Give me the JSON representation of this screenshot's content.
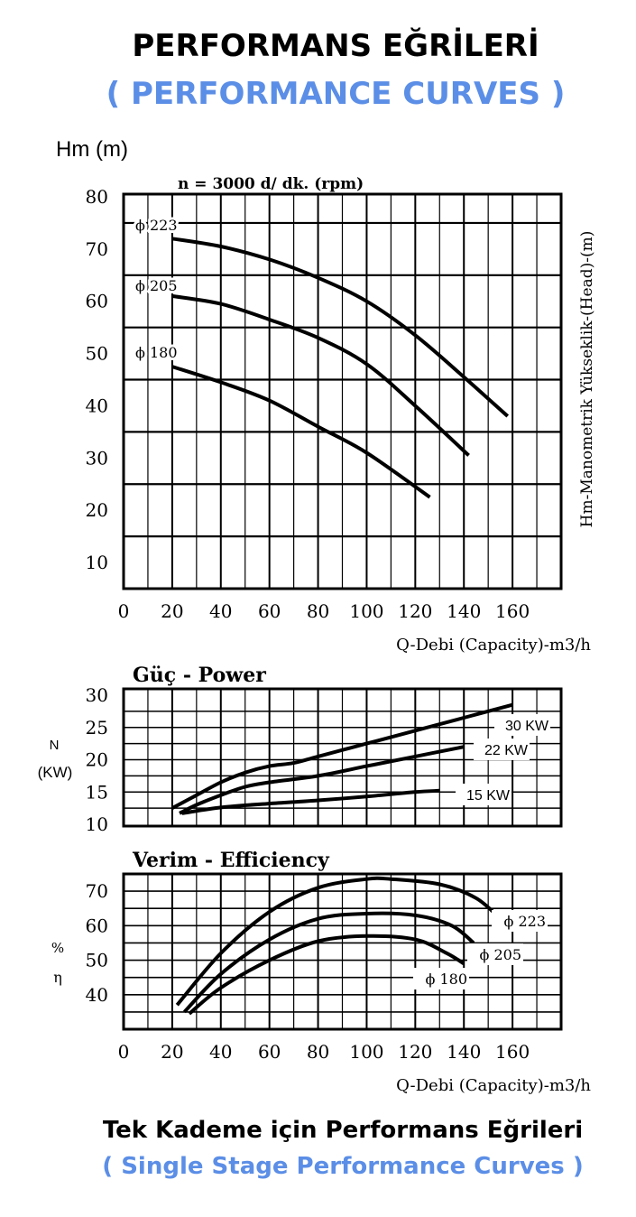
{
  "header": {
    "title": "PERFORMANS EĞRİLERİ",
    "subtitle": "( PERFORMANCE CURVES )",
    "accent_color": "#5b8ee6",
    "title_color": "#000000"
  },
  "footer": {
    "title": "Tek Kademe için Performans Eğrileri",
    "subtitle": "( Single Stage Performance Curves )"
  },
  "chart_data": [
    {
      "type": "line",
      "title": "",
      "speed_label": "n = 3000 d/ dk.  (rpm)",
      "ylabel": "Hm (m)",
      "ylabel_right": "Hm-Manometrik Yükseklik-(Head)-(m)",
      "xlabel": "Q-Debi (Capacity)-m3/h",
      "xlim": [
        0,
        180
      ],
      "ylim": [
        5,
        80
      ],
      "x_ticks": [
        0,
        20,
        40,
        60,
        80,
        100,
        120,
        140,
        160
      ],
      "y_ticks": [
        10,
        20,
        30,
        40,
        50,
        60,
        70,
        80
      ],
      "grid": true,
      "series": [
        {
          "name": "ϕ 223",
          "x": [
            20,
            40,
            60,
            80,
            100,
            120,
            140,
            158
          ],
          "y": [
            72,
            70.5,
            68,
            64.5,
            60,
            53.5,
            45.5,
            38
          ]
        },
        {
          "name": "ϕ 205",
          "x": [
            20,
            40,
            60,
            80,
            100,
            120,
            142
          ],
          "y": [
            61,
            59.5,
            56.5,
            53,
            48,
            40,
            30.5
          ]
        },
        {
          "name": "ϕ 180",
          "x": [
            20,
            40,
            60,
            80,
            100,
            126
          ],
          "y": [
            47.5,
            44.5,
            41,
            36,
            31,
            22.5
          ]
        }
      ]
    },
    {
      "type": "line",
      "title": "Güç - Power",
      "ylabel": "N\n(KW)",
      "xlim": [
        0,
        180
      ],
      "ylim": [
        10,
        30
      ],
      "y_ticks": [
        10,
        15,
        20,
        25,
        30
      ],
      "grid": true,
      "series": [
        {
          "name": "30 KW",
          "x": [
            20,
            30,
            40,
            50,
            60,
            70,
            80,
            100,
            120,
            140,
            160
          ],
          "y": [
            12.5,
            14.5,
            16.5,
            18,
            19,
            19.5,
            20.5,
            22.5,
            24.5,
            26.5,
            28.5
          ]
        },
        {
          "name": "22 KW",
          "x": [
            23,
            30,
            40,
            50,
            60,
            80,
            100,
            120,
            140
          ],
          "y": [
            11.7,
            13,
            14.5,
            15.8,
            16.5,
            17.5,
            19,
            20.5,
            22
          ]
        },
        {
          "name": "15 KW",
          "x": [
            24,
            40,
            60,
            80,
            100,
            120,
            130
          ],
          "y": [
            11.7,
            12.6,
            13.2,
            13.7,
            14.3,
            15,
            15.2
          ]
        }
      ]
    },
    {
      "type": "line",
      "title": "Verim - Efficiency",
      "ylabel": "%\nη",
      "xlabel": "Q-Debi (Capacity)-m3/h",
      "xlim": [
        0,
        180
      ],
      "ylim": [
        30,
        75
      ],
      "x_ticks": [
        0,
        20,
        40,
        60,
        80,
        100,
        120,
        140,
        160
      ],
      "y_ticks": [
        40,
        50,
        60,
        70
      ],
      "grid": true,
      "series": [
        {
          "name": "ϕ 223",
          "x": [
            22,
            40,
            60,
            80,
            100,
            110,
            130,
            145,
            155
          ],
          "y": [
            37,
            52,
            64,
            71,
            73.5,
            73.5,
            72,
            68,
            62
          ]
        },
        {
          "name": "ϕ 205",
          "x": [
            25,
            40,
            60,
            80,
            100,
            120,
            135,
            144
          ],
          "y": [
            35,
            46,
            56,
            62,
            63.5,
            63,
            60,
            55
          ]
        },
        {
          "name": "ϕ 180",
          "x": [
            27,
            40,
            60,
            80,
            100,
            120,
            133,
            140
          ],
          "y": [
            34.5,
            42,
            50,
            55.5,
            57,
            56,
            52,
            49
          ]
        }
      ]
    }
  ]
}
